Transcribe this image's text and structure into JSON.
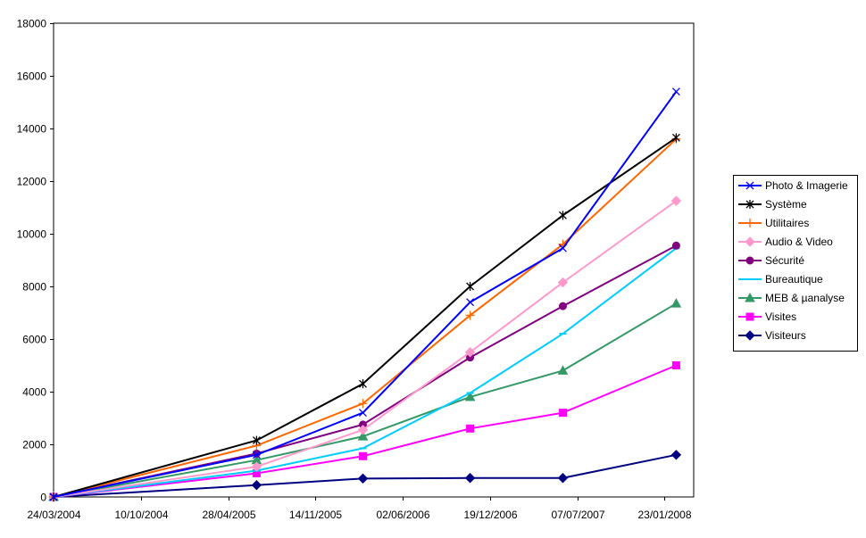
{
  "chart_data": {
    "type": "line",
    "title": "",
    "xlabel": "",
    "ylabel": "",
    "ylim": [
      0,
      18000
    ],
    "xlim": [
      "2004-03-24",
      "2008-03-26"
    ],
    "grid": "horizontal",
    "legend_position": "right",
    "x_ticks": [
      "24/03/2004",
      "10/10/2004",
      "28/04/2005",
      "14/11/2005",
      "02/06/2006",
      "19/12/2006",
      "07/07/2007",
      "23/01/2008"
    ],
    "y_ticks": [
      "0",
      "2000",
      "4000",
      "6000",
      "8000",
      "10000",
      "12000",
      "14000",
      "16000",
      "18000"
    ],
    "x": [
      "2004-03-24",
      "2005-07-01",
      "2006-03-01",
      "2006-11-01",
      "2007-06-01",
      "2008-02-15"
    ],
    "series": [
      {
        "name": "Photo & Imagerie",
        "color": "#0000ff",
        "marker": "x",
        "values": [
          0,
          1600,
          3200,
          7400,
          9450,
          15400
        ]
      },
      {
        "name": "Système",
        "color": "#000000",
        "marker": "star",
        "values": [
          0,
          2150,
          4300,
          8000,
          10700,
          13650
        ]
      },
      {
        "name": "Utilitaires",
        "color": "#ff6600",
        "marker": "plus",
        "values": [
          0,
          1950,
          3550,
          6900,
          9600,
          13600
        ]
      },
      {
        "name": "Audio & Video",
        "color": "#ff99cc",
        "marker": "diamond",
        "values": [
          0,
          1150,
          2550,
          5500,
          8150,
          11250
        ]
      },
      {
        "name": "Sécurité",
        "color": "#800080",
        "marker": "circle",
        "values": [
          0,
          1650,
          2750,
          5300,
          7250,
          9550
        ]
      },
      {
        "name": "Bureautique",
        "color": "#00ccff",
        "marker": "dash",
        "values": [
          0,
          1000,
          1850,
          3950,
          6200,
          9450
        ]
      },
      {
        "name": "MEB & µanalyse",
        "color": "#339966",
        "marker": "triangle",
        "values": [
          0,
          1400,
          2300,
          3800,
          4800,
          7350
        ]
      },
      {
        "name": "Visites",
        "color": "#ff00ff",
        "marker": "square",
        "values": [
          0,
          900,
          1550,
          2600,
          3200,
          5000
        ]
      },
      {
        "name": "Visiteurs",
        "color": "#000080",
        "marker": "diamond",
        "values": [
          0,
          450,
          700,
          720,
          720,
          1600
        ]
      }
    ]
  }
}
